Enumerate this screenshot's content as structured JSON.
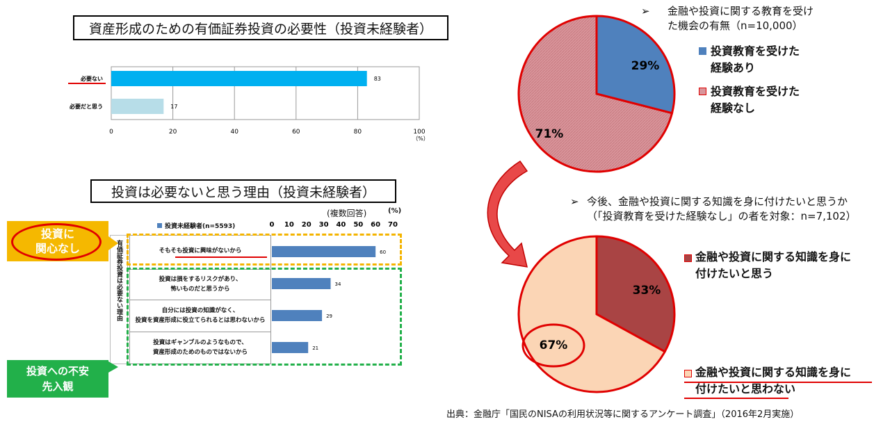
{
  "chart1": {
    "title": "資産形成のための有価証券投資の必要性（投資未経験者）",
    "unit": "（%）"
  },
  "chart2": {
    "title": "投資は必要ないと思う理由（投資未経験者）",
    "note": "(複数回答)",
    "unit": "(%)",
    "legend": "投資未経験者(n=5593)",
    "vertical_label": "有価証券投資は必要ない理由",
    "callout_interest": [
      "投資に",
      "関心なし"
    ],
    "callout_anxiety": [
      "投資への不安",
      "先入観"
    ],
    "reasons": [
      [
        "そもそも投資に興味がないから"
      ],
      [
        "投資は損をするリスクがあり、",
        "怖いものだと思うから"
      ],
      [
        "自分には投資の知識がなく、",
        "投資を資産形成に役立てられるとは思わないから"
      ],
      [
        "投資はギャンブルのようなもので、",
        "資産形成のためのものではないから"
      ]
    ]
  },
  "pie1": {
    "note_marker": "➢",
    "note_lines": [
      "金融や投資に関する教育を受け",
      "た機会の有無（n=10,000）"
    ],
    "legend": [
      [
        "投資教育を受けた",
        "経験あり"
      ],
      [
        "投資教育を受けた",
        "経験なし"
      ]
    ],
    "labels": [
      "29%",
      "71%"
    ]
  },
  "pie2": {
    "note_marker": "➢",
    "note_lines": [
      "今後、金融や投資に関する知識を身に付けたいと思うか",
      "（「投資教育を受けた経験なし」の者を対象：n=7,102）"
    ],
    "legend": [
      [
        "金融や投資に関する知識を身に",
        "付けたいと思う"
      ],
      [
        "金融や投資に関する知識を身に",
        "付けたいと思わない"
      ]
    ],
    "labels": [
      "33%",
      "67%"
    ]
  },
  "source": "出典：金融庁「国民のNISAの利用状況等に関するアンケート調査」（2016年2月実施）",
  "chart_data": [
    {
      "type": "bar",
      "orientation": "horizontal",
      "title": "資産形成のための有価証券投資の必要性（投資未経験者）",
      "categories": [
        "必要ない",
        "必要だと思う"
      ],
      "values": [
        83,
        17
      ],
      "xlim": [
        0,
        100
      ],
      "xticks": [
        "0",
        "20",
        "40",
        "60",
        "80",
        "100"
      ],
      "colors": [
        "#00b0f0",
        "#b7dde8"
      ]
    },
    {
      "type": "bar",
      "orientation": "horizontal",
      "title": "投資は必要ないと思う理由（投資未経験者）",
      "series": [
        {
          "name": "投資未経験者(n=5593)",
          "values": [
            60,
            34,
            29,
            21
          ]
        }
      ],
      "categories": [
        "そもそも投資に興味がないから",
        "投資は損をするリスクがあり、怖いものだと思うから",
        "自分には投資の知識がなく、投資を資産形成に役立てられるとは思わないから",
        "投資はギャンブルのようなもので、資産形成のためのものではないから"
      ],
      "xlim": [
        0,
        70
      ],
      "xticks": [
        "0",
        "10",
        "20",
        "30",
        "40",
        "50",
        "60",
        "70"
      ],
      "colors": [
        "#4f81bd"
      ]
    },
    {
      "type": "pie",
      "categories": [
        "投資教育を受けた経験あり",
        "投資教育を受けた経験なし"
      ],
      "values": [
        29,
        71
      ],
      "colors": [
        "#4f81bd",
        "#d9959b"
      ]
    },
    {
      "type": "pie",
      "categories": [
        "金融や投資に関する知識を身に付けたいと思う",
        "金融や投資に関する知識を身に付けたいと思わない"
      ],
      "values": [
        33,
        67
      ],
      "colors": [
        "#a94444",
        "#fbd5b5"
      ]
    }
  ]
}
